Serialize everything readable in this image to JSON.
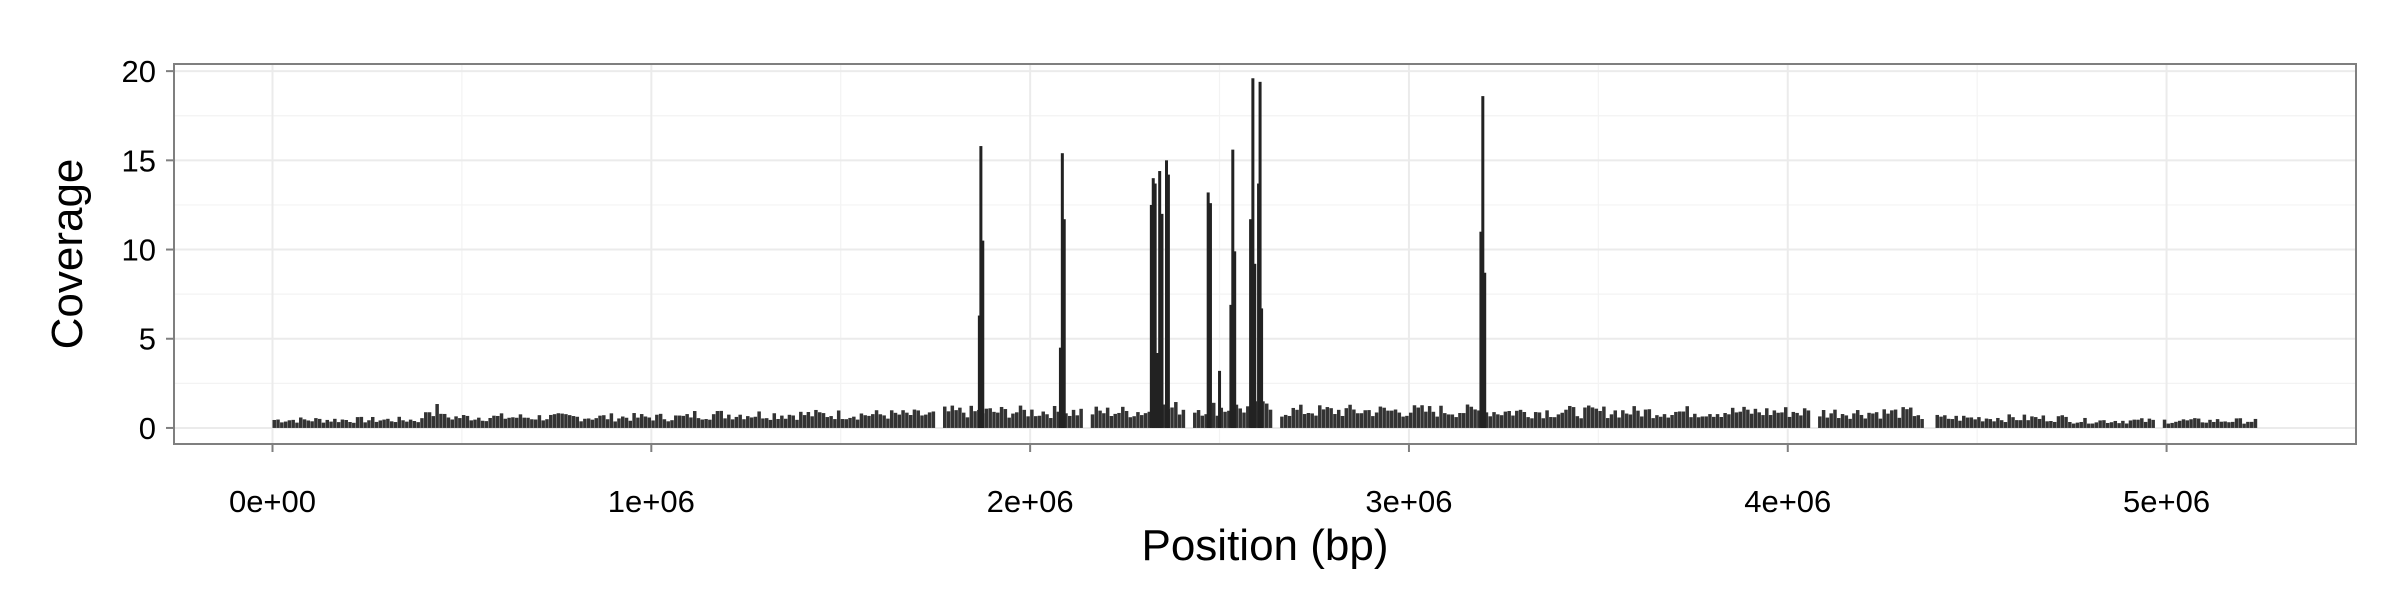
{
  "chart_data": {
    "type": "bar",
    "title": "",
    "xlabel": "Position (bp)",
    "ylabel": "Coverage",
    "xlim": [
      -260000,
      5500000
    ],
    "ylim": [
      -0.9,
      20.4
    ],
    "x_ticks": [
      {
        "value": 0,
        "label": "0e+00"
      },
      {
        "value": 1000000,
        "label": "1e+06"
      },
      {
        "value": 2000000,
        "label": "2e+06"
      },
      {
        "value": 3000000,
        "label": "3e+06"
      },
      {
        "value": 4000000,
        "label": "4e+06"
      },
      {
        "value": 5000000,
        "label": "5e+06"
      }
    ],
    "y_ticks": [
      {
        "value": 0,
        "label": "0"
      },
      {
        "value": 5,
        "label": "5"
      },
      {
        "value": 10,
        "label": "10"
      },
      {
        "value": 15,
        "label": "15"
      },
      {
        "value": 20,
        "label": "20"
      }
    ],
    "grid": true,
    "bar_color": "#333333",
    "peak_color": "#222222",
    "panel_background": "#ffffff",
    "panel_border_color": "#7f7f7f",
    "grid_color": "#ebebeb",
    "baseline": {
      "x_start": 0,
      "x_end": 5240000,
      "bin_width": 10000,
      "segments": [
        {
          "start": 0,
          "end": 400000,
          "level": 0.45
        },
        {
          "start": 400000,
          "end": 450000,
          "level": 1.0
        },
        {
          "start": 450000,
          "end": 1100000,
          "level": 0.6
        },
        {
          "start": 1100000,
          "end": 1750000,
          "level": 0.75
        },
        {
          "start": 1750000,
          "end": 2350000,
          "level": 0.9
        },
        {
          "start": 2350000,
          "end": 2650000,
          "level": 1.1
        },
        {
          "start": 2650000,
          "end": 3200000,
          "level": 0.95
        },
        {
          "start": 3200000,
          "end": 4050000,
          "level": 0.9
        },
        {
          "start": 4050000,
          "end": 4350000,
          "level": 0.85
        },
        {
          "start": 4350000,
          "end": 4750000,
          "level": 0.55
        },
        {
          "start": 4750000,
          "end": 5240000,
          "level": 0.4
        }
      ],
      "gaps": [
        [
          1750000,
          1770000
        ],
        [
          2140000,
          2160000
        ],
        [
          2410000,
          2430000
        ],
        [
          2640000,
          2660000
        ],
        [
          4060000,
          4080000
        ],
        [
          4360000,
          4390000
        ],
        [
          4970000,
          4990000
        ]
      ]
    },
    "peaks": [
      {
        "x": 1870000,
        "value": 15.8
      },
      {
        "x": 1875000,
        "value": 10.5
      },
      {
        "x": 1866000,
        "value": 6.3
      },
      {
        "x": 2080000,
        "value": 4.5
      },
      {
        "x": 2085000,
        "value": 15.4
      },
      {
        "x": 2090000,
        "value": 11.7
      },
      {
        "x": 2320000,
        "value": 12.5
      },
      {
        "x": 2325000,
        "value": 14.0
      },
      {
        "x": 2330000,
        "value": 13.7
      },
      {
        "x": 2337000,
        "value": 4.2
      },
      {
        "x": 2342000,
        "value": 14.4
      },
      {
        "x": 2348000,
        "value": 12.0
      },
      {
        "x": 2360000,
        "value": 15.0
      },
      {
        "x": 2365000,
        "value": 14.2
      },
      {
        "x": 2470000,
        "value": 13.2
      },
      {
        "x": 2476000,
        "value": 12.6
      },
      {
        "x": 2500000,
        "value": 3.2
      },
      {
        "x": 2530000,
        "value": 6.9
      },
      {
        "x": 2535000,
        "value": 15.6
      },
      {
        "x": 2540000,
        "value": 9.9
      },
      {
        "x": 2582000,
        "value": 11.7
      },
      {
        "x": 2588000,
        "value": 19.6
      },
      {
        "x": 2593000,
        "value": 9.2
      },
      {
        "x": 2603000,
        "value": 13.7
      },
      {
        "x": 2607000,
        "value": 19.4
      },
      {
        "x": 2611000,
        "value": 6.7
      },
      {
        "x": 3190000,
        "value": 11.0
      },
      {
        "x": 3195000,
        "value": 18.6
      },
      {
        "x": 3200000,
        "value": 8.7
      }
    ]
  }
}
